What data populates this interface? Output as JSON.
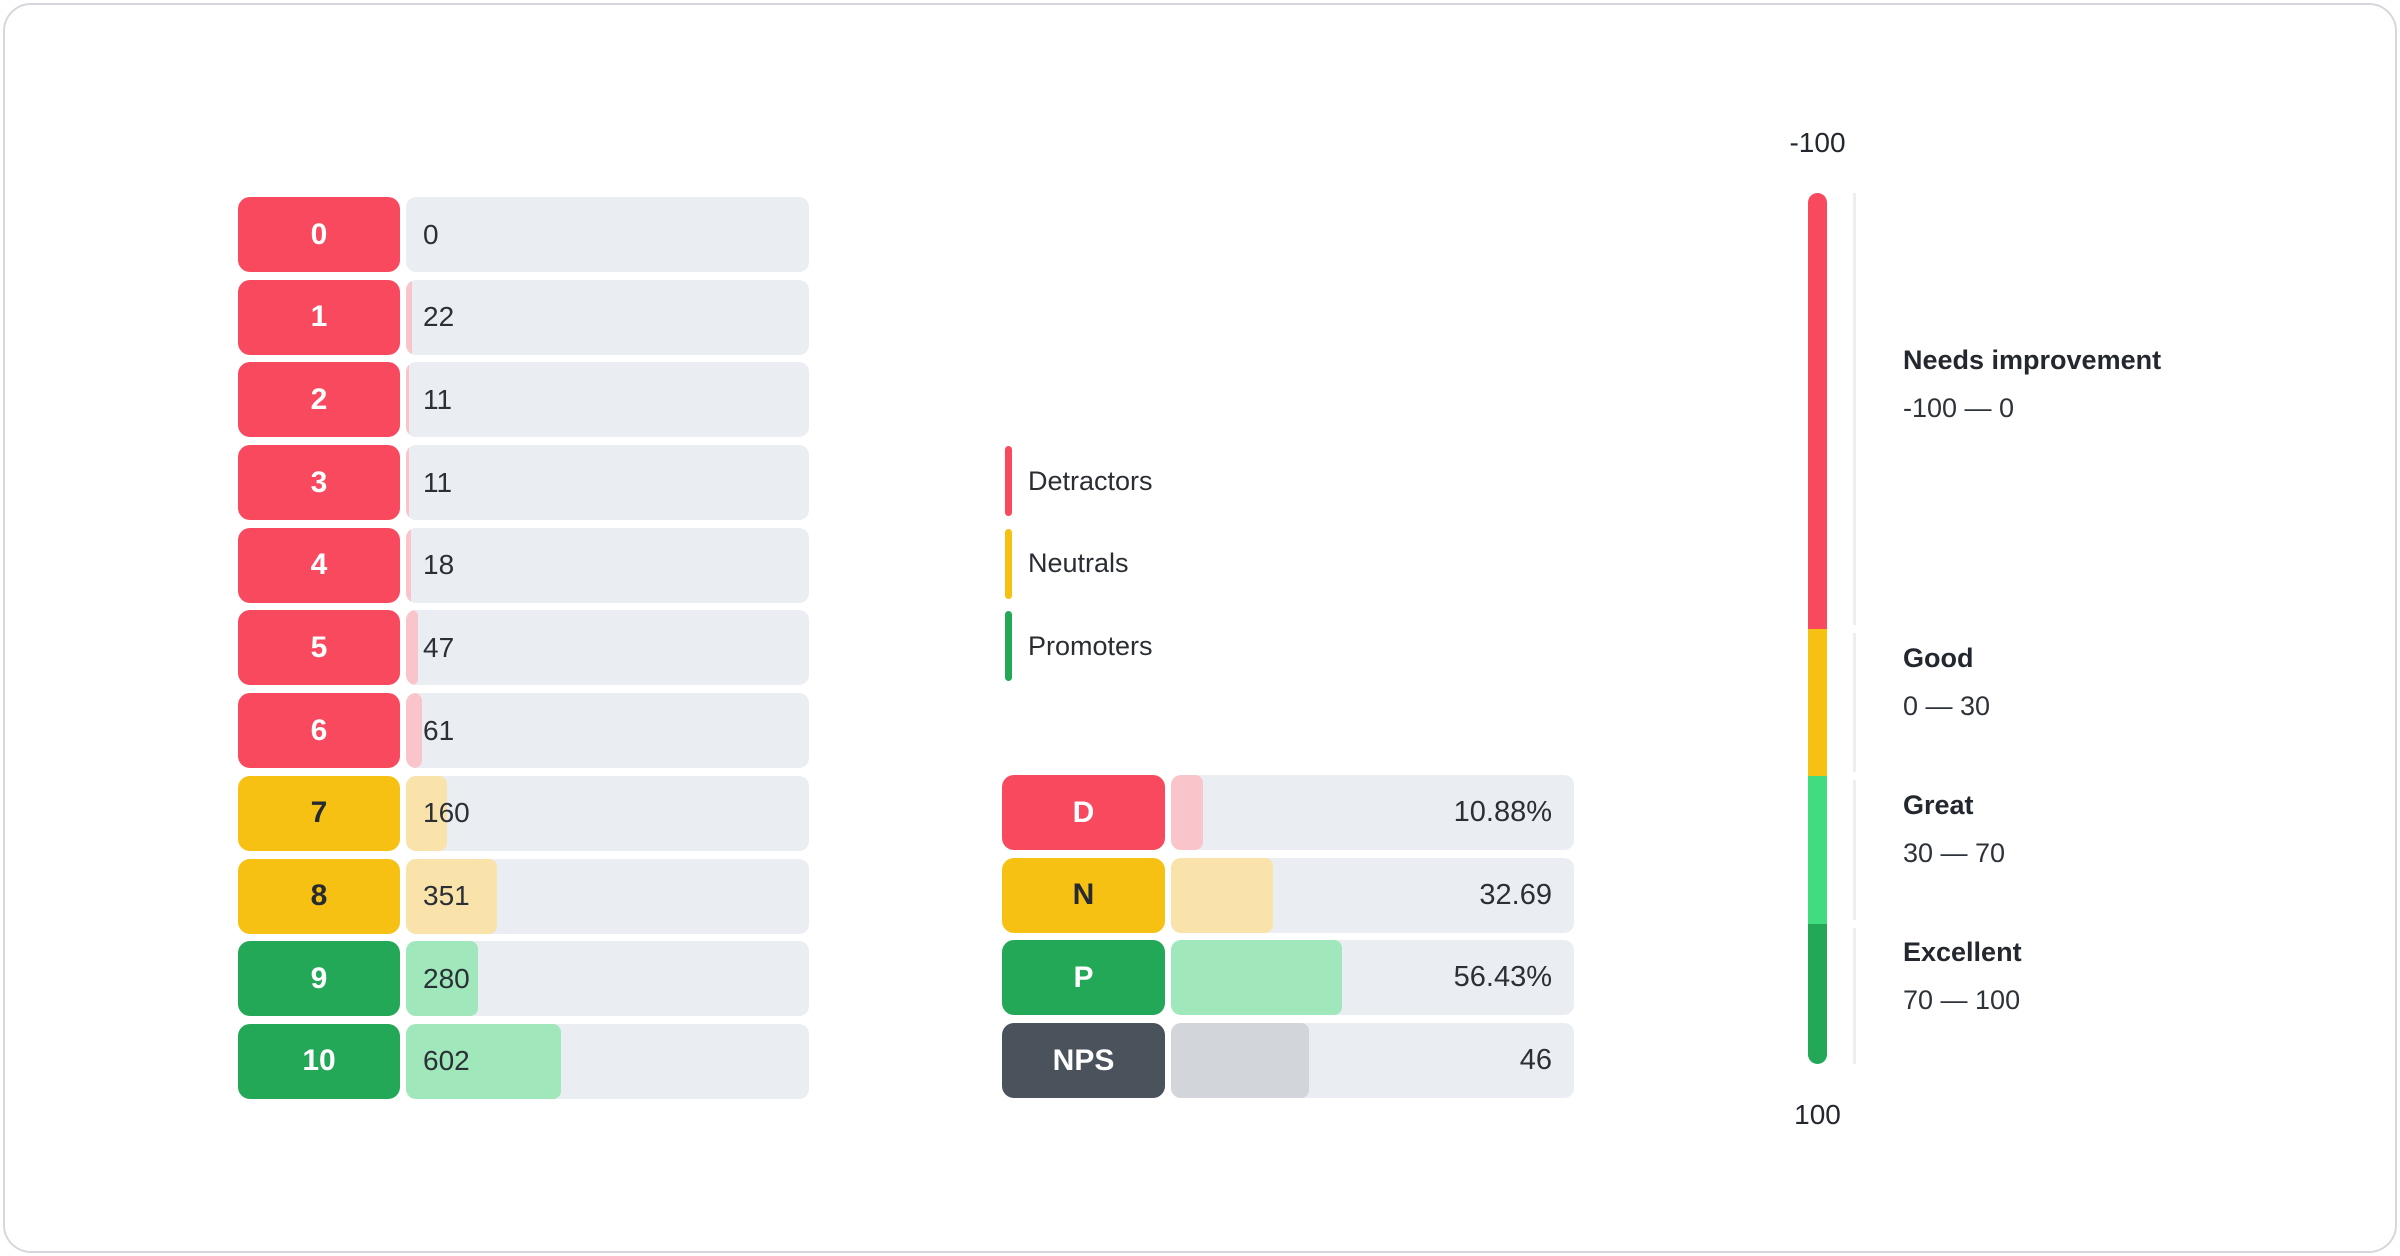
{
  "colors": {
    "detractor": "#F9495E",
    "neutral": "#F6C113",
    "promoter": "#22A857",
    "promoter_light": "#41DC7E",
    "detractor_fill": "#FAC4CB",
    "neutral_fill": "#FAE3AB",
    "promoter_fill": "#A0E8BB",
    "nps_chip": "#4A525C",
    "nps_fill": "#D2D6DB",
    "track": "#EAEDF2",
    "text": "#23272E",
    "card_border": "#D5D8DD"
  },
  "chart_data": {
    "type": "bar",
    "distribution": {
      "categories": [
        "0",
        "1",
        "2",
        "3",
        "4",
        "5",
        "6",
        "7",
        "8",
        "9",
        "10"
      ],
      "values": [
        0,
        22,
        11,
        11,
        18,
        47,
        61,
        160,
        351,
        280,
        602
      ],
      "groups": [
        "detractor",
        "detractor",
        "detractor",
        "detractor",
        "detractor",
        "detractor",
        "detractor",
        "neutral",
        "neutral",
        "promoter",
        "promoter"
      ]
    },
    "rows": [
      {
        "score": "0",
        "count": "0",
        "group": "detractor",
        "fill_pct": 0
      },
      {
        "score": "1",
        "count": "22",
        "group": "detractor",
        "fill_pct": 1.41
      },
      {
        "score": "2",
        "count": "11",
        "group": "detractor",
        "fill_pct": 0.7
      },
      {
        "score": "3",
        "count": "11",
        "group": "detractor",
        "fill_pct": 0.7
      },
      {
        "score": "4",
        "count": "18",
        "group": "detractor",
        "fill_pct": 1.15
      },
      {
        "score": "5",
        "count": "47",
        "group": "detractor",
        "fill_pct": 3.01
      },
      {
        "score": "6",
        "count": "61",
        "group": "detractor",
        "fill_pct": 3.9
      },
      {
        "score": "7",
        "count": "160",
        "group": "neutral",
        "fill_pct": 10.24
      },
      {
        "score": "8",
        "count": "351",
        "group": "neutral",
        "fill_pct": 22.46
      },
      {
        "score": "9",
        "count": "280",
        "group": "promoter",
        "fill_pct": 17.91
      },
      {
        "score": "10",
        "count": "602",
        "group": "promoter",
        "fill_pct": 38.52
      }
    ],
    "legend": [
      {
        "label": "Detractors",
        "group": "detractor"
      },
      {
        "label": "Neutrals",
        "group": "neutral"
      },
      {
        "label": "Promoters",
        "group": "promoter"
      }
    ],
    "summary": [
      {
        "label": "D",
        "value": "10.88%",
        "group": "detractor",
        "fill_pct": 7.9
      },
      {
        "label": "N",
        "value": "32.69",
        "group": "neutral",
        "fill_pct": 25.3
      },
      {
        "label": "P",
        "value": "56.43%",
        "group": "promoter",
        "fill_pct": 42.4
      },
      {
        "label": "NPS",
        "value": "46",
        "group": "nps",
        "fill_pct": 34.2
      }
    ],
    "gauge": {
      "axis_top": "-100",
      "axis_bottom": "100",
      "zones": [
        {
          "title": "Needs improvement",
          "range": "-100 — 0",
          "color": "red",
          "height_pct": 50
        },
        {
          "title": "Good",
          "range": "0 — 30",
          "color": "yellow",
          "height_pct": 16.9
        },
        {
          "title": "Great",
          "range": "30 — 70",
          "color": "green_light",
          "height_pct": 17
        },
        {
          "title": "Excellent",
          "range": "70 — 100",
          "color": "green_dark",
          "height_pct": 16.1
        }
      ]
    }
  }
}
